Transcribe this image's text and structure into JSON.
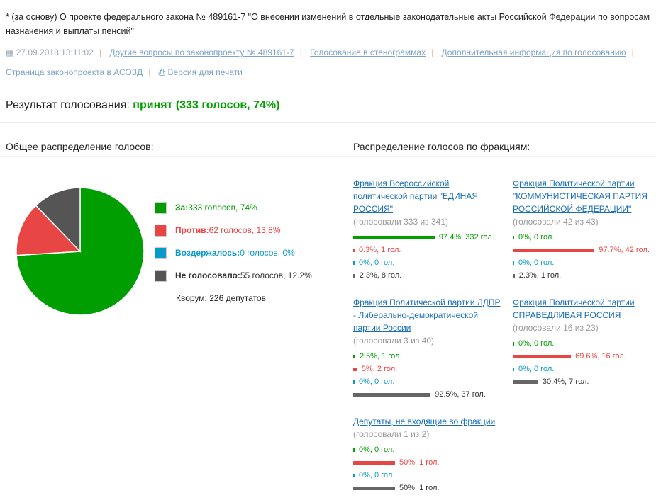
{
  "header": {
    "title": "* (за основу) О проекте федерального закона № 489161-7 \"О внесении изменений в отдельные законодательные акты Российской Федерации по вопросам назначения и выплаты пенсий\"",
    "date": "27.09.2018 13:11:02",
    "links": [
      "Другие вопросы по законопроекту № 489161-7",
      "Голосование в стенограммах",
      "Дополнительная информация по голосованию",
      "Страница законопроекта в АСОЗД"
    ],
    "print": "Версия для печати"
  },
  "result": {
    "label": "Результат голосования:",
    "value": "принят (333 голосов, 74%)"
  },
  "overall": {
    "heading": "Общее распределение голосов:",
    "legend": [
      {
        "label": "За:",
        "text": " 333 голосов, 74%",
        "color": "#009e00",
        "pct": 74
      },
      {
        "label": "Против:",
        "text": " 62 голосов, 13.8%",
        "color": "#e84545",
        "pct": 13.8
      },
      {
        "label": "Воздержалось:",
        "text": " 0 голосов, 0%",
        "color": "#0a9ac9",
        "pct": 0
      },
      {
        "label": "Не голосовало:",
        "text": " 55 голосов, 12.2%",
        "color": "#555555",
        "pct": 12.2
      }
    ],
    "quorum": "Кворум: 226 депутатов"
  },
  "factions": {
    "heading": "Распределение голосов по фракциям:",
    "items": [
      {
        "name": "Фракция Всероссийской политической партии \"ЕДИНАЯ РОССИЯ\"",
        "count": "(голосовали 333 из 341)",
        "bars": [
          {
            "pct": 97.4,
            "text": "97.4%, 332 гол."
          },
          {
            "pct": 0.3,
            "text": "0.3%, 1 гол."
          },
          {
            "pct": 0,
            "text": "0%, 0 гол."
          },
          {
            "pct": 2.3,
            "text": "2.3%, 8 гол."
          }
        ]
      },
      {
        "name": "Фракция Политической партии \"КОММУНИСТИЧЕСКАЯ ПАРТИЯ РОССИЙСКОЙ ФЕДЕРАЦИИ\"",
        "count": "(голосовали 42 из 43)",
        "bars": [
          {
            "pct": 0,
            "text": "0%, 0 гол."
          },
          {
            "pct": 97.7,
            "text": "97.7%, 42 гол."
          },
          {
            "pct": 0,
            "text": "0%, 0 гол."
          },
          {
            "pct": 2.3,
            "text": "2.3%, 1 гол."
          }
        ]
      },
      {
        "name": "Фракция Политической партии ЛДПР - Либерально-демократической партии России",
        "count": "(голосовали 3 из 40)",
        "bars": [
          {
            "pct": 2.5,
            "text": "2.5%, 1 гол."
          },
          {
            "pct": 5,
            "text": "5%, 2 гол."
          },
          {
            "pct": 0,
            "text": "0%, 0 гол."
          },
          {
            "pct": 92.5,
            "text": "92.5%, 37 гол."
          }
        ]
      },
      {
        "name": "Фракция Политической партии СПРАВЕДЛИВАЯ РОССИЯ",
        "count": "(голосовали 16 из 23)",
        "bars": [
          {
            "pct": 0,
            "text": "0%, 0 гол."
          },
          {
            "pct": 69.6,
            "text": "69.6%, 16 гол."
          },
          {
            "pct": 0,
            "text": "0%, 0 гол."
          },
          {
            "pct": 30.4,
            "text": "30.4%, 7 гол."
          }
        ]
      },
      {
        "name": "Депутаты, не входящие во фракции",
        "count": "(голосовали 1 из 2)",
        "bars": [
          {
            "pct": 0,
            "text": "0%, 0 гол."
          },
          {
            "pct": 50,
            "text": "50%, 1 гол."
          },
          {
            "pct": 0,
            "text": "0%, 0 гол."
          },
          {
            "pct": 50,
            "text": "50%, 1 гол."
          }
        ]
      }
    ]
  }
}
